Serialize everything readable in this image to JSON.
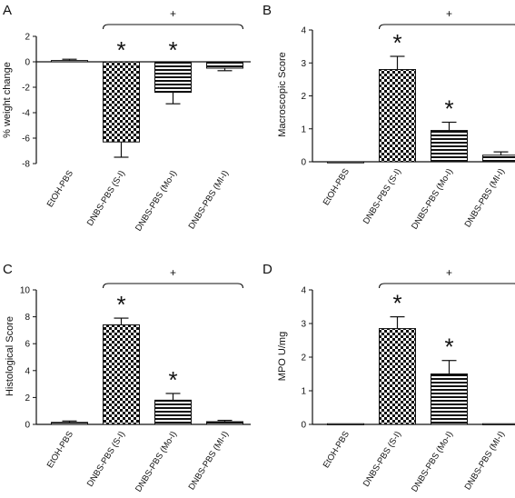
{
  "colors": {
    "axis": "#111111",
    "bar_fill": "#ffffff",
    "hatch": "#111111"
  },
  "chart_data": [
    {
      "panel_label": "A",
      "type": "bar",
      "categories": [
        "EtOH-PBS",
        "DNBS-PBS (S-I)",
        "DNBS-PBS (Mo-I)",
        "DNBS-PBS (MI-I)"
      ],
      "values": [
        0.1,
        -6.3,
        -2.4,
        -0.5
      ],
      "errors": [
        0.1,
        1.2,
        0.9,
        0.2
      ],
      "patterns": [
        "hlines",
        "checker",
        "hlines",
        "hlines"
      ],
      "stars": [
        "",
        "*",
        "*",
        ""
      ],
      "ylabel": "% weight change",
      "ylim": [
        -8,
        2
      ],
      "yticks": [
        -8,
        -6,
        -4,
        -2,
        0,
        2
      ],
      "significance": "+",
      "bracket_from": 1,
      "bracket_to": 3
    },
    {
      "panel_label": "B",
      "type": "bar",
      "categories": [
        "EtOH-PBS",
        "DNBS-PBS (S-I)",
        "DNBS-PBS (Mo-I)",
        "DNBS-PBS (MI-I)"
      ],
      "values": [
        0,
        2.8,
        0.95,
        0.2
      ],
      "errors": [
        0,
        0.4,
        0.25,
        0.1
      ],
      "patterns": [
        "hlines",
        "checker",
        "hlines",
        "hlines"
      ],
      "stars": [
        "",
        "*",
        "*",
        ""
      ],
      "ylabel": "Macroscopic Score",
      "ylim": [
        0,
        4
      ],
      "yticks": [
        0,
        1,
        2,
        3,
        4
      ],
      "significance": "+",
      "bracket_from": 1,
      "bracket_to": 3
    },
    {
      "panel_label": "C",
      "type": "bar",
      "categories": [
        "EtOH-PBS",
        "DNBS-PBS (S-I)",
        "DNBS-PBS (Mo-I)",
        "DNBS-PBS (MI-I)"
      ],
      "values": [
        0.15,
        7.4,
        1.8,
        0.2
      ],
      "errors": [
        0.1,
        0.5,
        0.5,
        0.1
      ],
      "patterns": [
        "hlines",
        "checker",
        "hlines",
        "hlines"
      ],
      "stars": [
        "",
        "*",
        "*",
        ""
      ],
      "ylabel": "Histological Score",
      "ylim": [
        0,
        10
      ],
      "yticks": [
        0,
        2,
        4,
        6,
        8,
        10
      ],
      "significance": "+",
      "bracket_from": 1,
      "bracket_to": 3
    },
    {
      "panel_label": "D",
      "type": "bar",
      "categories": [
        "EtOH-PBS",
        "DNBS-PBS (S-I)",
        "DNBS-PBS (Mo-I)",
        "DNBS-PBS (MI-I)"
      ],
      "values": [
        0.02,
        2.85,
        1.5,
        0.02
      ],
      "errors": [
        0,
        0.35,
        0.4,
        0
      ],
      "patterns": [
        "hlines",
        "checker",
        "hlines",
        "hlines"
      ],
      "stars": [
        "",
        "*",
        "*",
        ""
      ],
      "ylabel": "MPO U/mg",
      "ylim": [
        0,
        4
      ],
      "yticks": [
        0,
        1,
        2,
        3,
        4
      ],
      "significance": "+",
      "bracket_from": 1,
      "bracket_to": 3
    }
  ]
}
